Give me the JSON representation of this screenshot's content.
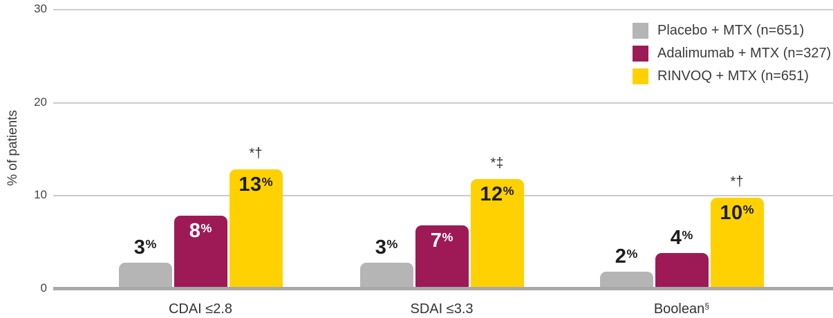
{
  "chart_data": {
    "type": "bar",
    "title": "",
    "xlabel": "",
    "ylabel": "% of patients",
    "ylim": [
      0,
      30
    ],
    "yticks": [
      0,
      10,
      20,
      30
    ],
    "grid": "horizontal",
    "legend_position": "top-right",
    "value_suffix": "%",
    "categories": [
      "CDAI ≤2.8",
      "SDAI ≤3.3",
      "Boolean§"
    ],
    "category_display": [
      {
        "text": "CDAI ≤2.8",
        "sup": ""
      },
      {
        "text": "SDAI ≤3.3",
        "sup": ""
      },
      {
        "text": "Boolean",
        "sup": "§"
      }
    ],
    "series": [
      {
        "name": "Placebo + MTX (n=651)",
        "key": "placebo-mtx",
        "color": "#b5b5b5",
        "values": [
          3,
          3,
          2
        ]
      },
      {
        "name": "Adalimumab + MTX (n=327)",
        "key": "adalimumab-mtx",
        "color": "#9e1a56",
        "values": [
          8,
          7,
          4
        ]
      },
      {
        "name": "RINVOQ + MTX (n=651)",
        "key": "rinvoq-mtx",
        "color": "#ffd100",
        "values": [
          13,
          12,
          10
        ],
        "annotations": [
          "*†",
          "*‡",
          "*†"
        ]
      }
    ],
    "colors": {
      "gridline": "#cbcbcb",
      "axis_line": "#a8a8a8",
      "label_dark": "#1d1d1d",
      "label_light": "#ffffff"
    }
  }
}
